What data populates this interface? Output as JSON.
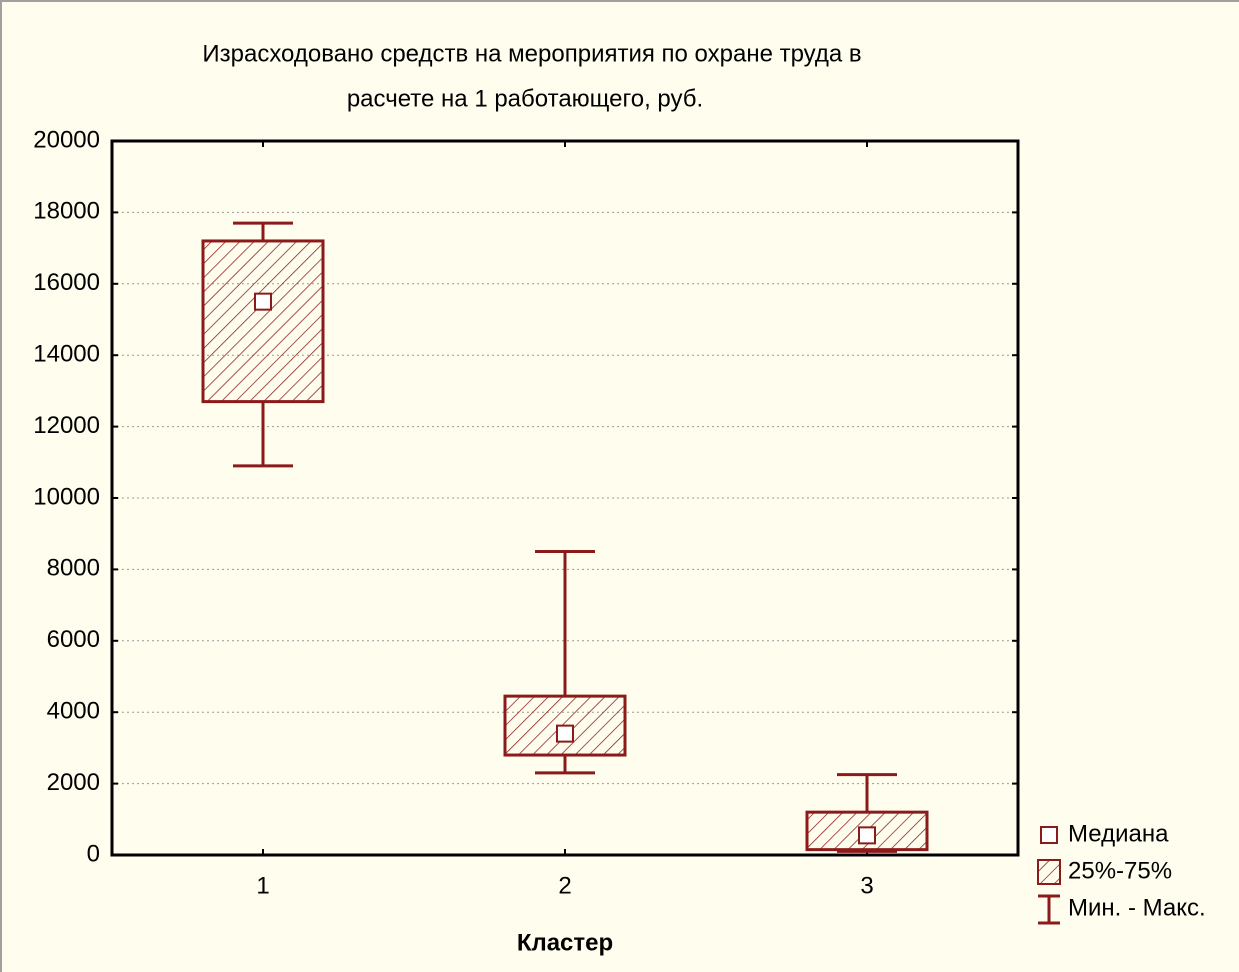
{
  "chart_data": {
    "type": "box",
    "title": [
      "Израсходовано средств на мероприятия по охране труда в",
      "расчете на 1 работающего, руб."
    ],
    "x_label": "Кластер",
    "categories": [
      "1",
      "2",
      "3"
    ],
    "min": [
      10900,
      2300,
      100
    ],
    "q1": [
      12700,
      2800,
      150
    ],
    "median": [
      15500,
      3400,
      550
    ],
    "q3": [
      17200,
      4450,
      1200
    ],
    "max": [
      17700,
      8500,
      2250
    ],
    "color": "#8b1a1a",
    "ylim": [
      0,
      20000
    ],
    "yticks": [
      0,
      2000,
      4000,
      6000,
      8000,
      10000,
      12000,
      14000,
      16000,
      18000,
      20000
    ],
    "grid": true,
    "legend": [
      "Медиана",
      "25%-75%",
      "Мин. - Макс."
    ],
    "legend_position": "lower right"
  }
}
